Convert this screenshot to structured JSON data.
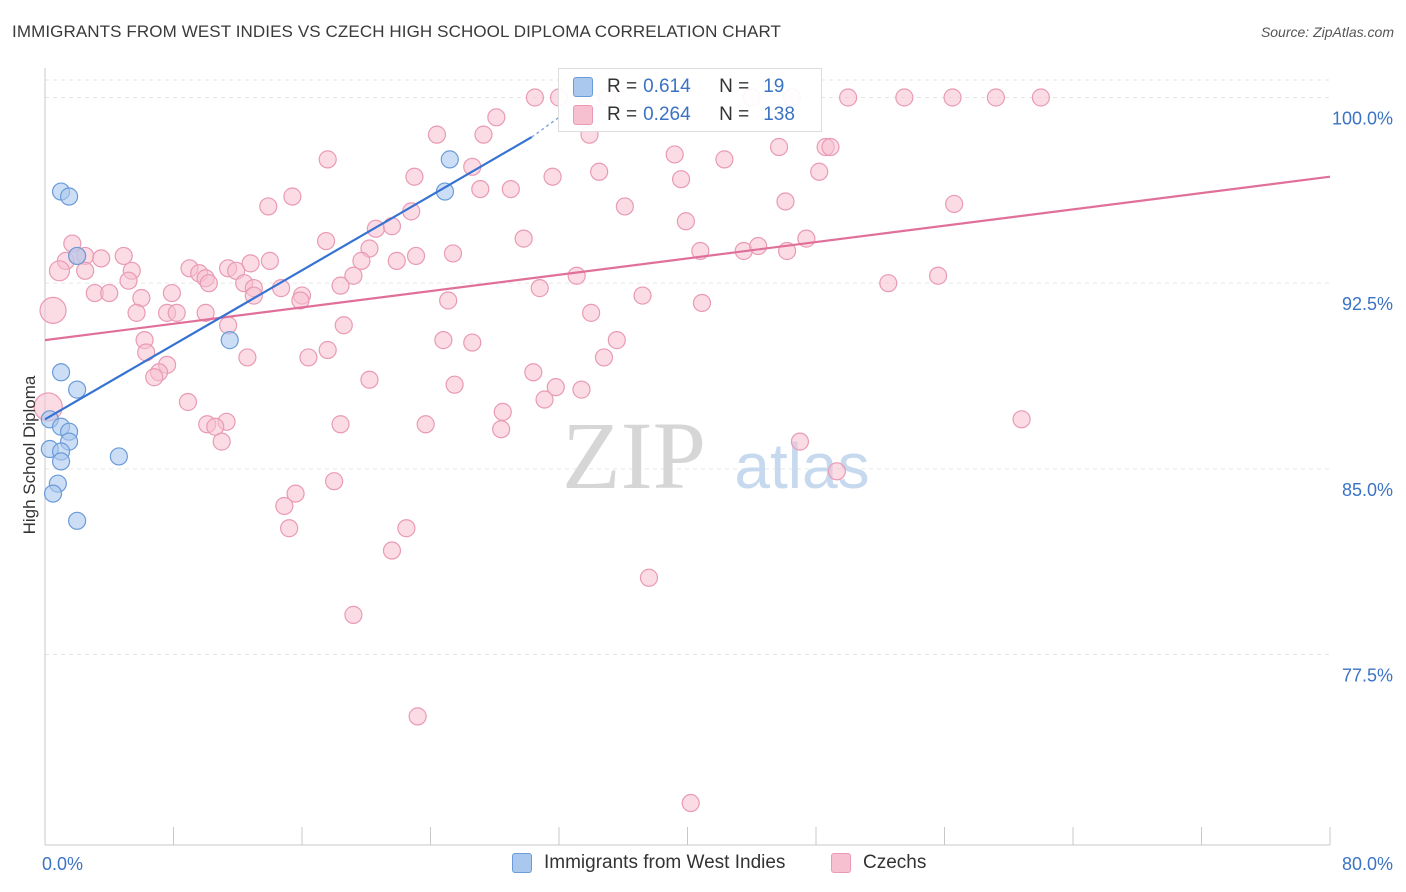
{
  "header": {
    "title": "IMMIGRANTS FROM WEST INDIES VS CZECH HIGH SCHOOL DIPLOMA CORRELATION CHART",
    "source": "Source: ZipAtlas.com"
  },
  "watermark": {
    "zip": "ZIP",
    "atlas": "atlas"
  },
  "legend": {
    "r_label": "R =",
    "n_label": "N =",
    "rows": [
      {
        "r": "0.614",
        "n": "19"
      },
      {
        "r": "0.264",
        "n": "138"
      }
    ]
  },
  "chart_data": {
    "type": "scatter",
    "title": "IMMIGRANTS FROM WEST INDIES VS CZECH HIGH SCHOOL DIPLOMA CORRELATION CHART",
    "ylabel": "High School Diploma",
    "xlabel": "",
    "xlim": [
      0,
      80
    ],
    "ylim": [
      71.0,
      101.0
    ],
    "x_tick_labels": [
      "0.0%",
      "80.0%"
    ],
    "y_ticks": [
      77.5,
      85.0,
      92.5,
      100.0
    ],
    "y_tick_labels": [
      "77.5%",
      "85.0%",
      "92.5%",
      "100.0%"
    ],
    "grid": true,
    "legend_position": "bottom",
    "colors": {
      "blue_fill": "#aac8ee",
      "blue_stroke": "#6b9bd8",
      "blue_line": "#3572d2",
      "pink_fill": "#f7c0d0",
      "pink_stroke": "#e99ab4",
      "pink_line": "#e07099",
      "tick_label": "#3b73c4"
    },
    "series": [
      {
        "name": "Immigrants from West Indies",
        "r": 0.614,
        "n": 19,
        "trend": {
          "x": [
            0.0,
            30.3
          ],
          "y": [
            87.0,
            98.4
          ]
        },
        "trend_dashed": {
          "x": [
            30.3,
            32.0
          ],
          "y": [
            98.4,
            99.2
          ]
        },
        "points": [
          [
            1.0,
            96.2
          ],
          [
            1.5,
            96.0
          ],
          [
            2.0,
            93.6
          ],
          [
            1.0,
            88.9
          ],
          [
            2.0,
            88.2
          ],
          [
            0.3,
            87.0
          ],
          [
            1.0,
            86.7
          ],
          [
            1.5,
            86.5
          ],
          [
            1.5,
            86.1
          ],
          [
            0.3,
            85.8
          ],
          [
            1.0,
            85.7
          ],
          [
            1.0,
            85.3
          ],
          [
            0.8,
            84.4
          ],
          [
            0.5,
            84.0
          ],
          [
            2.0,
            82.9
          ],
          [
            4.6,
            85.5
          ],
          [
            11.5,
            90.2
          ],
          [
            25.2,
            97.5
          ],
          [
            24.9,
            96.2
          ]
        ]
      },
      {
        "name": "Czechs",
        "r": 0.264,
        "n": 138,
        "trend": {
          "x": [
            0.0,
            80.0
          ],
          "y": [
            90.2,
            96.8
          ]
        },
        "points": [
          [
            30.5,
            100.0
          ],
          [
            32.0,
            100.0
          ],
          [
            35.0,
            100.0
          ],
          [
            44.0,
            100.0
          ],
          [
            46.5,
            100.0
          ],
          [
            50.0,
            100.0
          ],
          [
            53.5,
            100.0
          ],
          [
            56.5,
            100.0
          ],
          [
            59.2,
            100.0
          ],
          [
            62.0,
            100.0
          ],
          [
            28.1,
            99.2
          ],
          [
            24.4,
            98.5
          ],
          [
            27.3,
            98.5
          ],
          [
            33.9,
            98.5
          ],
          [
            45.7,
            98.0
          ],
          [
            48.6,
            98.0
          ],
          [
            48.9,
            98.0
          ],
          [
            17.6,
            97.5
          ],
          [
            26.6,
            97.2
          ],
          [
            34.5,
            97.0
          ],
          [
            42.3,
            97.5
          ],
          [
            39.2,
            97.7
          ],
          [
            48.2,
            97.0
          ],
          [
            23.0,
            96.8
          ],
          [
            31.6,
            96.8
          ],
          [
            39.6,
            96.7
          ],
          [
            27.1,
            96.3
          ],
          [
            29.0,
            96.3
          ],
          [
            15.4,
            96.0
          ],
          [
            13.9,
            95.6
          ],
          [
            22.8,
            95.4
          ],
          [
            36.1,
            95.6
          ],
          [
            46.1,
            95.8
          ],
          [
            56.6,
            95.7
          ],
          [
            20.6,
            94.7
          ],
          [
            21.6,
            94.8
          ],
          [
            39.9,
            95.0
          ],
          [
            17.5,
            94.2
          ],
          [
            29.8,
            94.3
          ],
          [
            47.4,
            94.3
          ],
          [
            1.7,
            94.1
          ],
          [
            20.2,
            93.9
          ],
          [
            40.8,
            93.8
          ],
          [
            43.5,
            93.8
          ],
          [
            44.4,
            94.0
          ],
          [
            46.2,
            93.8
          ],
          [
            2.5,
            93.6
          ],
          [
            3.5,
            93.5
          ],
          [
            4.9,
            93.6
          ],
          [
            1.3,
            93.4
          ],
          [
            2.0,
            93.6
          ],
          [
            12.8,
            93.3
          ],
          [
            14.0,
            93.4
          ],
          [
            19.7,
            93.4
          ],
          [
            21.9,
            93.4
          ],
          [
            23.1,
            93.6
          ],
          [
            25.4,
            93.7
          ],
          [
            0.9,
            93.0
          ],
          [
            2.5,
            93.0
          ],
          [
            5.4,
            93.0
          ],
          [
            9.0,
            93.1
          ],
          [
            11.4,
            93.1
          ],
          [
            11.9,
            93.0
          ],
          [
            9.6,
            92.9
          ],
          [
            19.2,
            92.8
          ],
          [
            33.1,
            92.8
          ],
          [
            55.6,
            92.8
          ],
          [
            10.0,
            92.7
          ],
          [
            5.2,
            92.6
          ],
          [
            12.4,
            92.5
          ],
          [
            10.2,
            92.5
          ],
          [
            18.4,
            92.4
          ],
          [
            13.0,
            92.3
          ],
          [
            14.7,
            92.3
          ],
          [
            30.8,
            92.3
          ],
          [
            52.5,
            92.5
          ],
          [
            3.1,
            92.1
          ],
          [
            4.0,
            92.1
          ],
          [
            7.9,
            92.1
          ],
          [
            13.0,
            92.0
          ],
          [
            16.0,
            92.0
          ],
          [
            25.1,
            91.8
          ],
          [
            37.2,
            92.0
          ],
          [
            40.9,
            91.7
          ],
          [
            6.0,
            91.9
          ],
          [
            15.9,
            91.8
          ],
          [
            0.5,
            91.4
          ],
          [
            7.6,
            91.3
          ],
          [
            8.2,
            91.3
          ],
          [
            10.0,
            91.3
          ],
          [
            34.0,
            91.3
          ],
          [
            5.7,
            91.3
          ],
          [
            11.4,
            90.8
          ],
          [
            18.6,
            90.8
          ],
          [
            6.2,
            90.2
          ],
          [
            24.8,
            90.2
          ],
          [
            26.6,
            90.1
          ],
          [
            35.6,
            90.2
          ],
          [
            6.3,
            89.7
          ],
          [
            12.6,
            89.5
          ],
          [
            16.4,
            89.5
          ],
          [
            17.6,
            89.8
          ],
          [
            34.8,
            89.5
          ],
          [
            7.6,
            89.2
          ],
          [
            7.1,
            88.9
          ],
          [
            6.8,
            88.7
          ],
          [
            30.4,
            88.9
          ],
          [
            20.2,
            88.6
          ],
          [
            25.5,
            88.4
          ],
          [
            31.8,
            88.3
          ],
          [
            33.4,
            88.2
          ],
          [
            31.1,
            87.8
          ],
          [
            8.9,
            87.7
          ],
          [
            28.5,
            87.3
          ],
          [
            0.2,
            87.5
          ],
          [
            11.3,
            86.9
          ],
          [
            10.1,
            86.8
          ],
          [
            18.4,
            86.8
          ],
          [
            23.7,
            86.8
          ],
          [
            28.4,
            86.6
          ],
          [
            60.8,
            87.0
          ],
          [
            10.6,
            86.7
          ],
          [
            11.0,
            86.1
          ],
          [
            47.0,
            86.1
          ],
          [
            49.3,
            84.9
          ],
          [
            18.0,
            84.5
          ],
          [
            15.6,
            84.0
          ],
          [
            14.9,
            83.5
          ],
          [
            15.2,
            82.6
          ],
          [
            22.5,
            82.6
          ],
          [
            21.6,
            81.7
          ],
          [
            37.6,
            80.6
          ],
          [
            19.2,
            79.1
          ],
          [
            23.2,
            75.0
          ],
          [
            40.2,
            71.5
          ]
        ]
      }
    ]
  },
  "bottom_legend": [
    "Immigrants from West Indies",
    "Czechs"
  ]
}
